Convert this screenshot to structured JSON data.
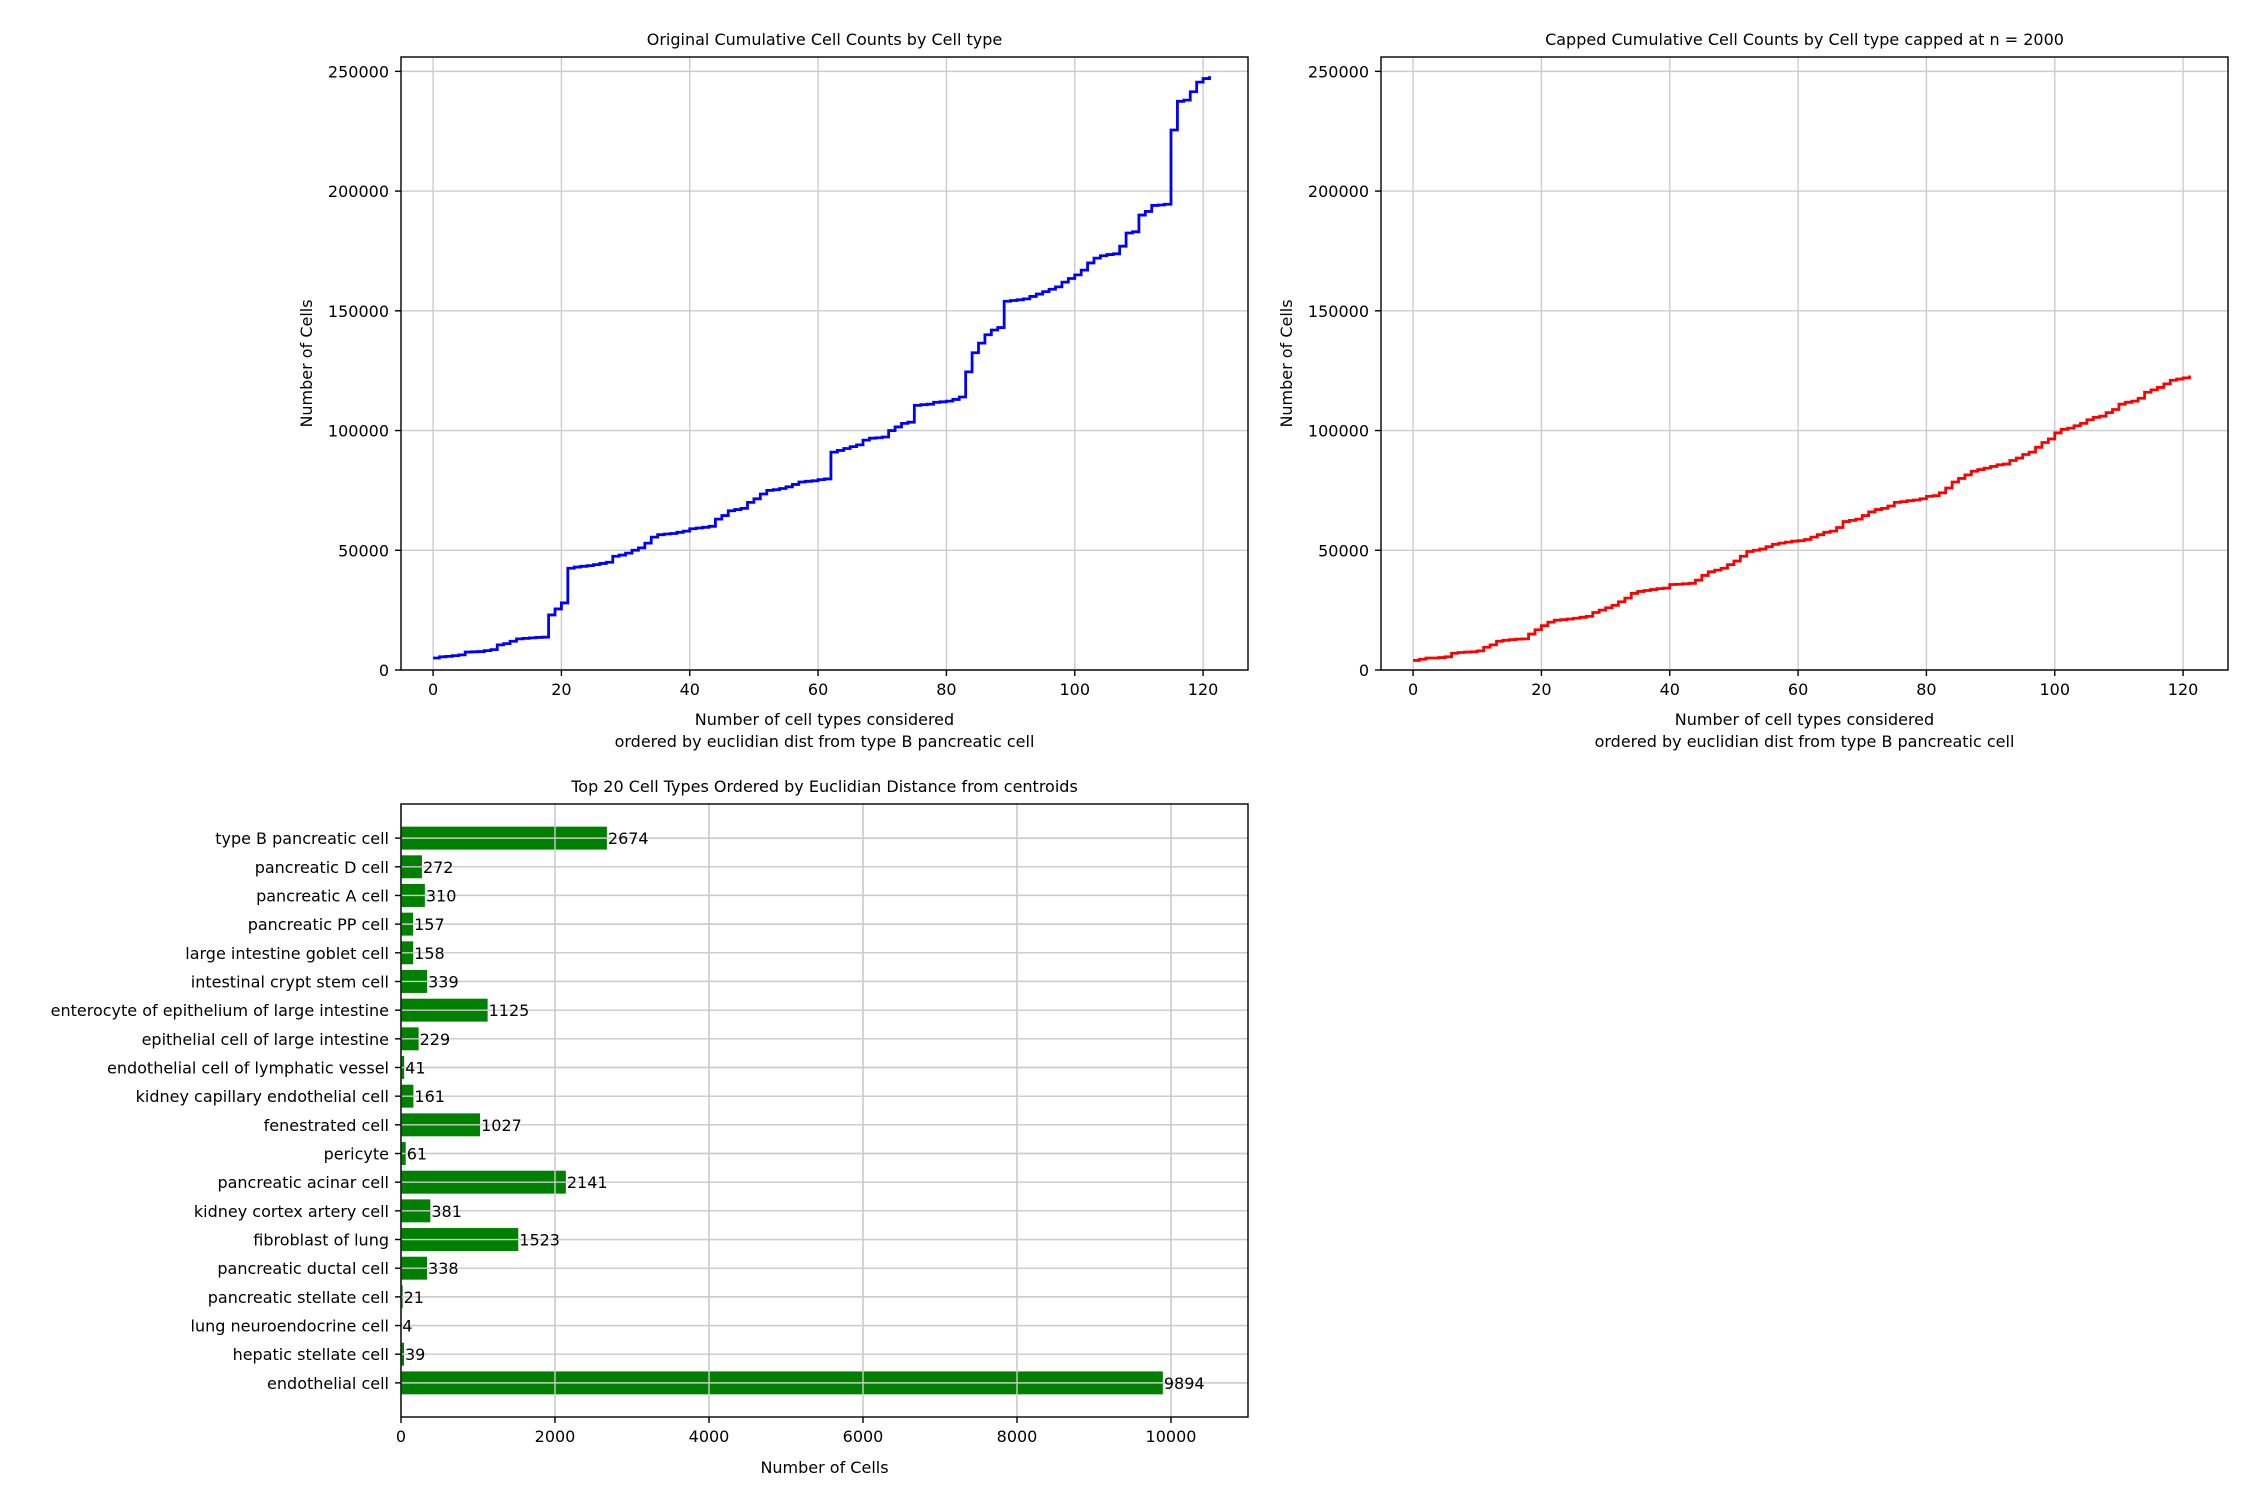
{
  "colors": {
    "original": "#0000ff",
    "capped": "#ff0000",
    "bars": "#008000",
    "grid": "#cccccc"
  },
  "chart_data": [
    {
      "type": "line",
      "drawstyle": "steps-post",
      "title": "Original Cumulative Cell Counts by Cell type",
      "xlabel_line1": "Number of cell types considered",
      "xlabel_line2": "ordered by euclidian dist from type B pancreatic cell",
      "ylabel": "Number of Cells",
      "xlim": [
        -5,
        127
      ],
      "ylim": [
        0,
        256000
      ],
      "xticks": [
        0,
        20,
        40,
        60,
        80,
        100,
        120
      ],
      "yticks": [
        0,
        50000,
        100000,
        150000,
        200000,
        250000
      ],
      "grid": true,
      "series": [
        {
          "name": "original",
          "x": [
            0,
            1,
            2,
            3,
            4,
            5,
            6,
            7,
            8,
            9,
            10,
            11,
            12,
            13,
            14,
            15,
            16,
            17,
            18,
            19,
            20,
            21,
            22,
            23,
            24,
            25,
            26,
            27,
            28,
            29,
            30,
            31,
            32,
            33,
            34,
            35,
            36,
            37,
            38,
            39,
            40,
            41,
            42,
            43,
            44,
            45,
            46,
            47,
            48,
            49,
            50,
            51,
            52,
            53,
            54,
            55,
            56,
            57,
            58,
            59,
            60,
            61,
            62,
            63,
            64,
            65,
            66,
            67,
            68,
            69,
            70,
            71,
            72,
            73,
            74,
            75,
            76,
            77,
            78,
            79,
            80,
            81,
            82,
            83,
            84,
            85,
            86,
            87,
            88,
            89,
            90,
            91,
            92,
            93,
            94,
            95,
            96,
            97,
            98,
            99,
            100,
            101,
            102,
            103,
            104,
            105,
            106,
            107,
            108,
            109,
            110,
            111,
            112,
            113,
            114,
            115,
            116,
            117,
            118,
            119,
            120,
            121
          ],
          "values": [
            5000,
            5500,
            5700,
            6000,
            6300,
            7500,
            7600,
            7700,
            8100,
            8500,
            10500,
            11000,
            12000,
            13000,
            13200,
            13400,
            13600,
            13700,
            23000,
            25500,
            28000,
            42500,
            43000,
            43300,
            43600,
            44000,
            44500,
            45000,
            47500,
            48000,
            48800,
            50000,
            51000,
            53000,
            55500,
            56500,
            56800,
            57000,
            57500,
            58000,
            59000,
            59300,
            59600,
            60000,
            63000,
            64500,
            66500,
            67000,
            67500,
            70000,
            71500,
            73500,
            75000,
            75300,
            75800,
            76500,
            77500,
            78500,
            78800,
            79000,
            79500,
            79800,
            91000,
            91700,
            92500,
            93300,
            94000,
            96000,
            96800,
            97000,
            97300,
            100000,
            101500,
            103000,
            103500,
            110500,
            110800,
            111000,
            111800,
            112000,
            112300,
            113000,
            114000,
            124500,
            132500,
            136500,
            140000,
            142000,
            143000,
            154000,
            154300,
            154600,
            155000,
            156000,
            157000,
            158000,
            159000,
            160000,
            162000,
            163500,
            165000,
            167000,
            170000,
            172000,
            173000,
            173500,
            173800,
            177000,
            182500,
            183000,
            190000,
            191500,
            194000,
            194200,
            194500,
            225500,
            237500,
            238000,
            241500,
            245500,
            247000,
            248000
          ]
        }
      ]
    },
    {
      "type": "line",
      "drawstyle": "steps-post",
      "title": "Capped Cumulative Cell Counts by Cell type capped at n = 2000",
      "xlabel_line1": "Number of cell types considered",
      "xlabel_line2": "ordered by euclidian dist from type B pancreatic cell",
      "ylabel": "Number of Cells",
      "xlim": [
        -5,
        127
      ],
      "ylim": [
        0,
        256000
      ],
      "xticks": [
        0,
        20,
        40,
        60,
        80,
        100,
        120
      ],
      "yticks": [
        0,
        50000,
        100000,
        150000,
        200000,
        250000
      ],
      "grid": true,
      "series": [
        {
          "name": "capped",
          "x": [
            0,
            1,
            2,
            3,
            4,
            5,
            6,
            7,
            8,
            9,
            10,
            11,
            12,
            13,
            14,
            15,
            16,
            17,
            18,
            19,
            20,
            21,
            22,
            23,
            24,
            25,
            26,
            27,
            28,
            29,
            30,
            31,
            32,
            33,
            34,
            35,
            36,
            37,
            38,
            39,
            40,
            41,
            42,
            43,
            44,
            45,
            46,
            47,
            48,
            49,
            50,
            51,
            52,
            53,
            54,
            55,
            56,
            57,
            58,
            59,
            60,
            61,
            62,
            63,
            64,
            65,
            66,
            67,
            68,
            69,
            70,
            71,
            72,
            73,
            74,
            75,
            76,
            77,
            78,
            79,
            80,
            81,
            82,
            83,
            84,
            85,
            86,
            87,
            88,
            89,
            90,
            91,
            92,
            93,
            94,
            95,
            96,
            97,
            98,
            99,
            100,
            101,
            102,
            103,
            104,
            105,
            106,
            107,
            108,
            109,
            110,
            111,
            112,
            113,
            114,
            115,
            116,
            117,
            118,
            119,
            120,
            121
          ],
          "values": [
            4000,
            4500,
            5000,
            5000,
            5200,
            5500,
            7000,
            7300,
            7500,
            7600,
            8000,
            9500,
            10500,
            12000,
            12400,
            12700,
            12900,
            13000,
            15000,
            16800,
            18500,
            20000,
            20800,
            21000,
            21300,
            21600,
            22000,
            22400,
            24000,
            25000,
            26000,
            27000,
            28500,
            30000,
            32000,
            32800,
            33200,
            33600,
            34000,
            34200,
            35700,
            35800,
            36000,
            36200,
            37500,
            39500,
            41000,
            41700,
            42500,
            44000,
            45500,
            47500,
            49500,
            50000,
            50500,
            51500,
            52500,
            53000,
            53400,
            53800,
            54000,
            54500,
            55500,
            56500,
            57500,
            58000,
            59500,
            62000,
            62500,
            63000,
            64500,
            66000,
            67000,
            67500,
            68500,
            70000,
            70300,
            70700,
            71000,
            71500,
            72500,
            72800,
            74000,
            76000,
            78500,
            80000,
            81500,
            83000,
            83700,
            84300,
            85000,
            85700,
            86000,
            87500,
            88500,
            90000,
            91000,
            93000,
            95000,
            96500,
            99000,
            100500,
            101000,
            102000,
            103000,
            104500,
            105500,
            106000,
            107500,
            108800,
            111000,
            111800,
            112300,
            113500,
            116000,
            117000,
            118000,
            119500,
            121000,
            121500,
            122000,
            123000
          ]
        }
      ]
    },
    {
      "type": "bar",
      "orientation": "horizontal",
      "title": "Top 20 Cell Types Ordered by Euclidian Distance from centroids",
      "xlabel": "Number of Cells",
      "ylabel": "",
      "xlim": [
        0,
        11000
      ],
      "xticks": [
        0,
        2000,
        4000,
        6000,
        8000,
        10000
      ],
      "grid": true,
      "categories": [
        "type B pancreatic cell",
        "pancreatic D cell",
        "pancreatic A cell",
        "pancreatic PP cell",
        "large intestine goblet cell",
        "intestinal crypt stem cell",
        "enterocyte of epithelium of large intestine",
        "epithelial cell of large intestine",
        "endothelial cell of lymphatic vessel",
        "kidney capillary endothelial cell",
        "fenestrated cell",
        "pericyte",
        "pancreatic acinar cell",
        "kidney cortex artery cell",
        "fibroblast of lung",
        "pancreatic ductal cell",
        "pancreatic stellate cell",
        "lung neuroendocrine cell",
        "hepatic stellate cell",
        "endothelial cell"
      ],
      "values": [
        2674,
        272,
        310,
        157,
        158,
        339,
        1125,
        229,
        41,
        161,
        1027,
        61,
        2141,
        381,
        1523,
        338,
        21,
        4,
        39,
        9894
      ]
    }
  ]
}
